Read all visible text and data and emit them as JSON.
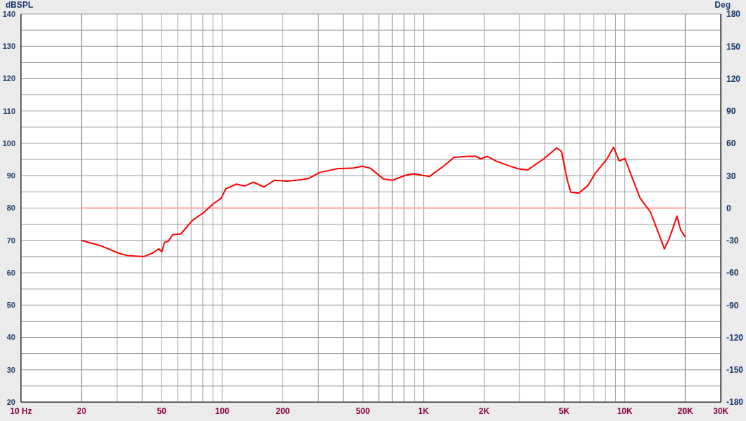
{
  "chart_data": {
    "type": "line",
    "ylabel": "dBSPL",
    "y2label": "Deg",
    "log": "x",
    "grid": true,
    "marker": "none",
    "line_style": "solid",
    "xlim": [
      10,
      30000
    ],
    "xticks": [
      {
        "value": 10,
        "label": "10  Hz"
      },
      20,
      {
        "value": 30,
        "label": null
      },
      {
        "value": 40,
        "label": null
      },
      50,
      {
        "value": 60,
        "label": null
      },
      {
        "value": 70,
        "label": null
      },
      {
        "value": 80,
        "label": null
      },
      {
        "value": 90,
        "label": null
      },
      100,
      200,
      {
        "value": 300,
        "label": null
      },
      {
        "value": 400,
        "label": null
      },
      500,
      {
        "value": 600,
        "label": null
      },
      {
        "value": 700,
        "label": null
      },
      {
        "value": 800,
        "label": null
      },
      {
        "value": 900,
        "label": null
      },
      {
        "value": 1000,
        "label": "1K"
      },
      {
        "value": 2000,
        "label": "2K"
      },
      {
        "value": 3000,
        "label": null
      },
      {
        "value": 4000,
        "label": null
      },
      {
        "value": 5000,
        "label": "5K"
      },
      {
        "value": 6000,
        "label": null
      },
      {
        "value": 7000,
        "label": null
      },
      {
        "value": 8000,
        "label": null
      },
      {
        "value": 9000,
        "label": null
      },
      {
        "value": 10000,
        "label": "10K"
      },
      {
        "value": 20000,
        "label": "20K"
      },
      {
        "value": 30000,
        "label": "30K"
      }
    ],
    "ylim": [
      20,
      140
    ],
    "yticks": [
      20,
      {
        "value": 25,
        "label": null
      },
      30,
      {
        "value": 35,
        "label": null
      },
      40,
      {
        "value": 45,
        "label": null
      },
      50,
      {
        "value": 55,
        "label": null
      },
      60,
      {
        "value": 65,
        "label": null
      },
      70,
      {
        "value": 75,
        "label": null
      },
      80,
      {
        "value": 85,
        "label": null
      },
      90,
      {
        "value": 95,
        "label": null
      },
      100,
      {
        "value": 105,
        "label": null
      },
      110,
      {
        "value": 115,
        "label": null
      },
      120,
      {
        "value": 125,
        "label": null
      },
      130,
      {
        "value": 135,
        "label": null
      },
      140
    ],
    "y2lim": [
      -180,
      180
    ],
    "y2ticks": [
      -180,
      -150,
      -120,
      -90,
      -60,
      -30,
      0,
      30,
      60,
      90,
      120,
      150,
      180
    ],
    "series": [
      {
        "color": "#ff0000",
        "x": [
          20,
          25.3,
          30.4,
          33.9,
          40.8,
          45.2,
          48.4,
          50.1,
          51.7,
          53.8,
          56.8,
          62.3,
          71.1,
          81.2,
          90.2,
          99,
          104,
          117.5,
          129,
          143,
          161,
          182,
          210,
          250,
          270,
          305,
          377,
          441,
          497,
          546,
          631,
          701,
          812,
          890,
          990,
          1072,
          1272,
          1415,
          1680,
          1818,
          1918,
          2076,
          2279,
          2671,
          2968,
          3298,
          3972,
          4594,
          4845,
          5174,
          5383,
          5907,
          6566,
          7110,
          8117,
          8788,
          9385,
          10020,
          10850,
          11910,
          13420,
          14720,
          15730,
          16590,
          18190,
          18920,
          20000
        ],
        "values": [
          70,
          68.2,
          66.1,
          65.3,
          65,
          66.1,
          67.4,
          66.5,
          69.4,
          69.7,
          71.8,
          72,
          76.2,
          78.7,
          81.3,
          83.1,
          85.9,
          87.4,
          86.8,
          88,
          86.5,
          88.6,
          88.3,
          88.8,
          89.2,
          91,
          92.2,
          92.3,
          92.9,
          92.3,
          89,
          88.6,
          90.1,
          90.6,
          90.1,
          89.8,
          93.2,
          95.7,
          96,
          96,
          95.2,
          96,
          94.6,
          93,
          92.1,
          91.8,
          95.3,
          98.6,
          97.5,
          88.8,
          84.9,
          84.6,
          87,
          90.6,
          95,
          98.8,
          94.6,
          95.3,
          89.6,
          83.1,
          78.7,
          72.2,
          67.4,
          70.4,
          77.5,
          73.3,
          71
        ]
      },
      {
        "color": "#ffa0a0",
        "axis": "y2",
        "x": [
          20,
          20000
        ],
        "values": [
          0,
          0
        ]
      }
    ]
  }
}
